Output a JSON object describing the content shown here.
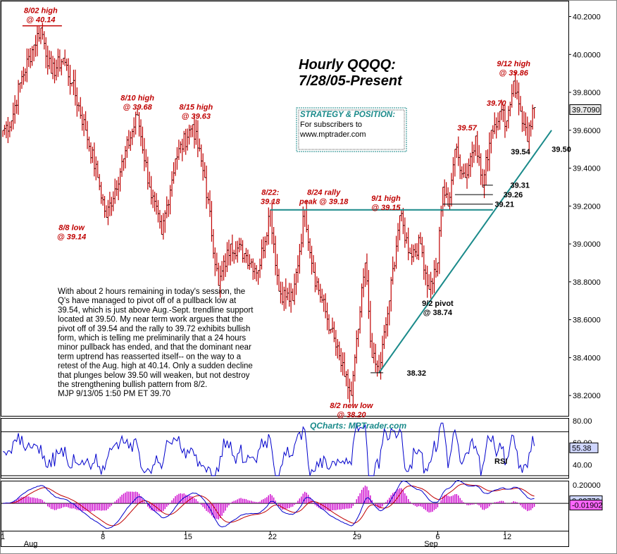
{
  "title_lines": [
    "Hourly QQQQ:",
    "7/28/05-Present"
  ],
  "strategy_box": {
    "heading": "STRATEGY & POSITION:",
    "lines": [
      "For subscribers to",
      "www.mptrader.com"
    ]
  },
  "commentary": [
    "With about 2 hours remaining in today's session, the",
    "Q's have managed to pivot off of a pullback low at",
    "39.54, which is just above Aug.-Sept. trendline support",
    "located at 39.50. My near term work argues that the",
    "pivot off of 39.54 and the rally to 39.72 exhibits bullish",
    "form, which is telling me preliminarily that a 24 hours",
    "minor pullback has ended, and that the dominant near",
    "term uptrend has reasserted itself-- on the way to a",
    "retest of the Aug. high at 40.14. Only a sudden decline",
    "that plunges below 39.50 will weaken, but not destroy",
    "the strengthening bullish pattern from 8/2.",
    "MJP 9/13/05 1:50 PM ET 39.70"
  ],
  "brand": "QCharts: MPTrader.com",
  "colors": {
    "bar": "#c00000",
    "trendline": "#1a8a8a",
    "rsi": "#0000cc",
    "macd": "#0000cc",
    "signal": "#c00000",
    "hist": "#cc00cc"
  },
  "chart_data": {
    "type": "line",
    "price": {
      "ylim": [
        38.1,
        40.28
      ],
      "yticks": [
        "40.2000",
        "40.0000",
        "39.8000",
        "39.6000",
        "39.4000",
        "39.2000",
        "39.0000",
        "38.8000",
        "38.6000",
        "38.4000",
        "38.2000"
      ],
      "last_price": "39.7090",
      "anchors": [
        [
          0,
          39.6
        ],
        [
          5,
          39.65
        ],
        [
          10,
          39.85
        ],
        [
          18,
          40.05
        ],
        [
          22,
          40.14
        ],
        [
          28,
          39.9
        ],
        [
          35,
          39.98
        ],
        [
          40,
          39.85
        ],
        [
          48,
          39.6
        ],
        [
          55,
          39.35
        ],
        [
          60,
          39.14
        ],
        [
          70,
          39.45
        ],
        [
          78,
          39.68
        ],
        [
          85,
          39.3
        ],
        [
          92,
          39.05
        ],
        [
          100,
          39.45
        ],
        [
          110,
          39.63
        ],
        [
          117,
          39.35
        ],
        [
          125,
          38.78
        ],
        [
          132,
          39.0
        ],
        [
          140,
          38.95
        ],
        [
          148,
          38.86
        ],
        [
          155,
          39.18
        ],
        [
          160,
          38.75
        ],
        [
          168,
          38.7
        ],
        [
          175,
          39.18
        ],
        [
          180,
          38.85
        ],
        [
          190,
          38.55
        ],
        [
          198,
          38.3
        ],
        [
          202,
          38.2
        ],
        [
          206,
          38.55
        ],
        [
          210,
          38.9
        ],
        [
          214,
          38.4
        ],
        [
          218,
          38.32
        ],
        [
          224,
          38.7
        ],
        [
          230,
          39.15
        ],
        [
          236,
          38.95
        ],
        [
          242,
          39.0
        ],
        [
          247,
          38.76
        ],
        [
          252,
          38.9
        ],
        [
          255,
          39.3
        ],
        [
          258,
          39.2
        ],
        [
          262,
          39.5
        ],
        [
          268,
          39.35
        ],
        [
          274,
          39.57
        ],
        [
          278,
          39.3
        ],
        [
          283,
          39.6
        ],
        [
          288,
          39.7
        ],
        [
          292,
          39.65
        ],
        [
          296,
          39.86
        ],
        [
          300,
          39.7
        ],
        [
          304,
          39.54
        ],
        [
          308,
          39.72
        ]
      ],
      "hlines": [
        {
          "from": 155,
          "to": 284,
          "value": 39.18
        },
        {
          "from": 255,
          "to": 284,
          "value": 39.21
        },
        {
          "from": 262,
          "to": 284,
          "value": 39.26
        },
        {
          "from": 278,
          "to": 284,
          "value": 39.31
        }
      ],
      "trendline": [
        [
          218,
          38.32
        ],
        [
          318,
          39.6
        ]
      ]
    },
    "x_tick_labels": [
      {
        "label": "1",
        "index": 0
      },
      {
        "label": "8",
        "index": 58
      },
      {
        "label": "15",
        "index": 106
      },
      {
        "label": "22",
        "index": 155
      },
      {
        "label": "29",
        "index": 204
      },
      {
        "label": "6",
        "index": 252
      },
      {
        "label": "12",
        "index": 291
      }
    ],
    "x_month_labels": [
      {
        "label": "Aug",
        "index": 4
      },
      {
        "label": "Sep",
        "index": 236
      }
    ],
    "annotations": [
      {
        "text": [
          "8/02 high",
          "@ 40.14"
        ],
        "index": 22,
        "value": 40.14,
        "style": "red",
        "pos": "above",
        "underline": true
      },
      {
        "text": [
          "8/10 high",
          "@ 39.68"
        ],
        "index": 78,
        "value": 39.68,
        "style": "red",
        "pos": "above"
      },
      {
        "text": [
          "8/15 high",
          "@ 39.63"
        ],
        "index": 112,
        "value": 39.63,
        "style": "red",
        "pos": "above"
      },
      {
        "text": [
          "8/8 low",
          "@ 39.14"
        ],
        "index": 48,
        "value": 39.14,
        "style": "red",
        "pos": "below-left"
      },
      {
        "text": [
          "8/22:",
          "39.18"
        ],
        "index": 155,
        "value": 39.18,
        "style": "red",
        "pos": "above"
      },
      {
        "text": [
          "8/24 rally",
          "peak @ 39.18"
        ],
        "index": 186,
        "value": 39.18,
        "style": "red",
        "pos": "above"
      },
      {
        "text": [
          "9/1 high",
          "@ 39.15"
        ],
        "index": 222,
        "value": 39.15,
        "style": "red",
        "pos": "above"
      },
      {
        "text": [
          "8/2 new low",
          "@ 38.20"
        ],
        "index": 202,
        "value": 38.2,
        "style": "red",
        "pos": "below"
      },
      {
        "text": [
          "9/2 pivot",
          "@ 38.74"
        ],
        "index": 252,
        "value": 38.74,
        "style": "black",
        "pos": "below"
      },
      {
        "text": [
          "38.32"
        ],
        "index": 230,
        "value": 38.32,
        "style": "black",
        "pos": "right"
      },
      {
        "text": [
          "39.57"
        ],
        "index": 269,
        "value": 39.57,
        "style": "red",
        "pos": "above"
      },
      {
        "text": [
          "39.70"
        ],
        "index": 286,
        "value": 39.7,
        "style": "red",
        "pos": "above"
      },
      {
        "text": [
          "9/12 high",
          "@ 39.86"
        ],
        "index": 296,
        "value": 39.86,
        "style": "red",
        "pos": "above"
      },
      {
        "text": [
          "39.54"
        ],
        "index": 300,
        "value": 39.54,
        "style": "black",
        "pos": "below"
      },
      {
        "text": [
          "39.50"
        ],
        "index": 314,
        "value": 39.5,
        "style": "black",
        "pos": "right"
      },
      {
        "text": [
          "39.31"
        ],
        "index": 290,
        "value": 39.31,
        "style": "black",
        "pos": "right"
      },
      {
        "text": [
          "39.26"
        ],
        "index": 286,
        "value": 39.26,
        "style": "black",
        "pos": "right"
      },
      {
        "text": [
          "39.21"
        ],
        "index": 281,
        "value": 39.21,
        "style": "black",
        "pos": "right"
      }
    ],
    "rsi": {
      "label": "RSI",
      "ylim": [
        28,
        82
      ],
      "yticks": [
        "80.00",
        "60.00",
        "40.00"
      ],
      "upper": 70,
      "lower": 30,
      "last_value": "55.38"
    },
    "macd": {
      "ylim": [
        -0.3,
        0.24
      ],
      "yticks": [
        "0.20000"
      ],
      "last_macd": "0.02776",
      "last_signal": "-0.01902"
    }
  }
}
